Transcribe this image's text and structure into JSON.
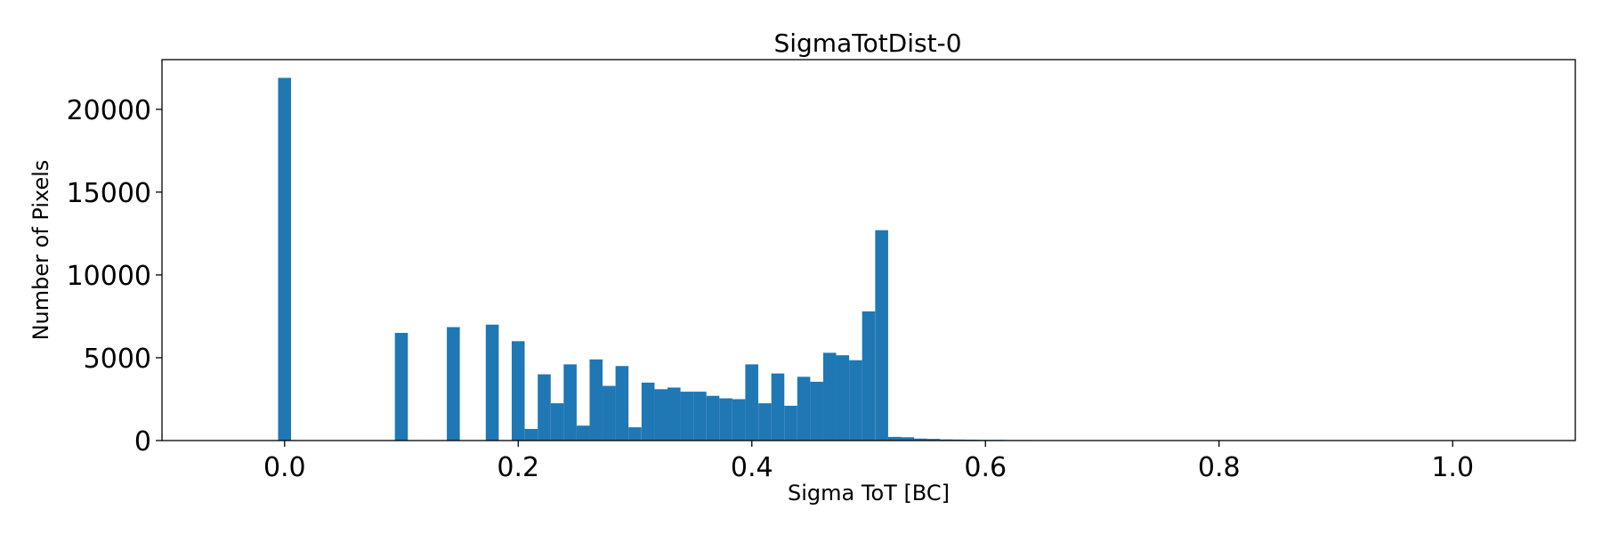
{
  "chart_data": {
    "type": "bar",
    "title": "SigmaTotDist-0",
    "xlabel": "Sigma ToT [BC]",
    "ylabel": "Number of Pixels",
    "xlim": [
      -0.105,
      1.105
    ],
    "ylim": [
      0,
      23000
    ],
    "bin_width": 0.0111,
    "x_ticks": [
      0.0,
      0.2,
      0.4,
      0.6,
      0.8,
      1.0
    ],
    "x_tick_labels": [
      "0.0",
      "0.2",
      "0.4",
      "0.6",
      "0.8",
      "1.0"
    ],
    "y_ticks": [
      0,
      5000,
      10000,
      15000,
      20000
    ],
    "y_tick_labels": [
      "0",
      "5000",
      "10000",
      "15000",
      "20000"
    ],
    "bar_color": "#1f77b4",
    "bins": [
      -0.0056,
      0.0944,
      0.1389,
      0.1722,
      0.1944,
      0.2056,
      0.2167,
      0.2278,
      0.2389,
      0.25,
      0.2611,
      0.2722,
      0.2833,
      0.2944,
      0.3056,
      0.3167,
      0.3278,
      0.3389,
      0.35,
      0.3611,
      0.3722,
      0.3833,
      0.3944,
      0.4056,
      0.4167,
      0.4278,
      0.4389,
      0.45,
      0.4611,
      0.4722,
      0.4833,
      0.4944,
      0.5056,
      0.5167,
      0.5278,
      0.5389,
      0.55,
      0.5611,
      0.5722,
      0.5833,
      0.5944,
      0.6056,
      0.6167,
      0.6278,
      0.6389,
      0.65
    ],
    "values": [
      21900,
      6500,
      6850,
      7000,
      6000,
      700,
      4000,
      2250,
      4600,
      900,
      4900,
      3300,
      4500,
      800,
      3500,
      3100,
      3200,
      2950,
      2950,
      2700,
      2550,
      2500,
      4600,
      2250,
      4050,
      2100,
      3850,
      3550,
      5300,
      5150,
      4850,
      7800,
      12700,
      220,
      200,
      120,
      100,
      70,
      60,
      50,
      40,
      40,
      30,
      30,
      20,
      20
    ]
  }
}
